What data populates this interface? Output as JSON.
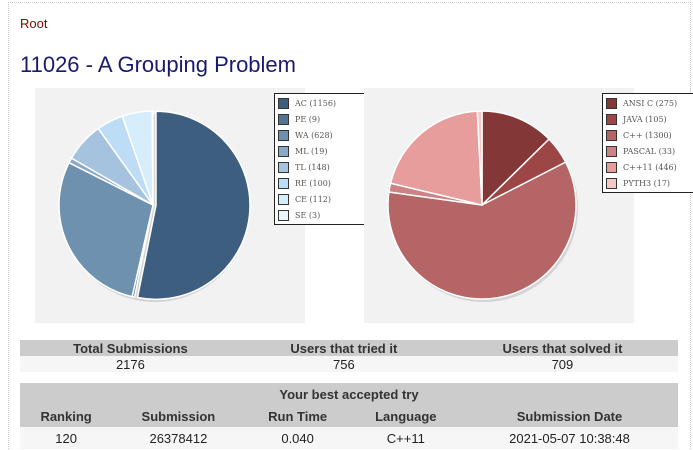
{
  "nav": {
    "root_label": "Root"
  },
  "problem": {
    "title": "11026 - A Grouping Problem"
  },
  "colors": {
    "link": "#8b0000",
    "title": "#1a1a6e",
    "header_bg": "#cccccc"
  },
  "chart_data": [
    {
      "type": "pie",
      "title": "",
      "series": [
        {
          "name": "AC (1156)",
          "values": [
            1156
          ],
          "color": "#3d5e7e"
        },
        {
          "name": "PE (9)",
          "values": [
            9
          ],
          "color": "#527494"
        },
        {
          "name": "WA (628)",
          "values": [
            628
          ],
          "color": "#6f91b0"
        },
        {
          "name": "ML (19)",
          "values": [
            19
          ],
          "color": "#89a9c6"
        },
        {
          "name": "TL (148)",
          "values": [
            148
          ],
          "color": "#a5c3df"
        },
        {
          "name": "RE (100)",
          "values": [
            100
          ],
          "color": "#bddcf5"
        },
        {
          "name": "CE (112)",
          "values": [
            112
          ],
          "color": "#d6eefc"
        },
        {
          "name": "SE (3)",
          "values": [
            3
          ],
          "color": "#e9f7fd"
        }
      ],
      "legend": "right"
    },
    {
      "type": "pie",
      "title": "",
      "series": [
        {
          "name": "ANSI C (275)",
          "values": [
            275
          ],
          "color": "#843737"
        },
        {
          "name": "JAVA (105)",
          "values": [
            105
          ],
          "color": "#9c4646"
        },
        {
          "name": "C++ (1300)",
          "values": [
            1300
          ],
          "color": "#b56565"
        },
        {
          "name": "PASCAL (33)",
          "values": [
            33
          ],
          "color": "#cd8383"
        },
        {
          "name": "C++11 (446)",
          "values": [
            446
          ],
          "color": "#e89d9d"
        },
        {
          "name": "PYTH3 (17)",
          "values": [
            17
          ],
          "color": "#f5c7c7"
        }
      ],
      "legend": "right"
    }
  ],
  "stats": {
    "headers": [
      "Total Submissions",
      "Users that tried it",
      "Users that solved it"
    ],
    "values": [
      "2176",
      "756",
      "709"
    ]
  },
  "best": {
    "title": "Your best accepted try",
    "headers": [
      "Ranking",
      "Submission",
      "Run Time",
      "Language",
      "Submission Date"
    ],
    "values": [
      "120",
      "26378412",
      "0.040",
      "C++11",
      "2021-05-07 10:38:48"
    ]
  }
}
